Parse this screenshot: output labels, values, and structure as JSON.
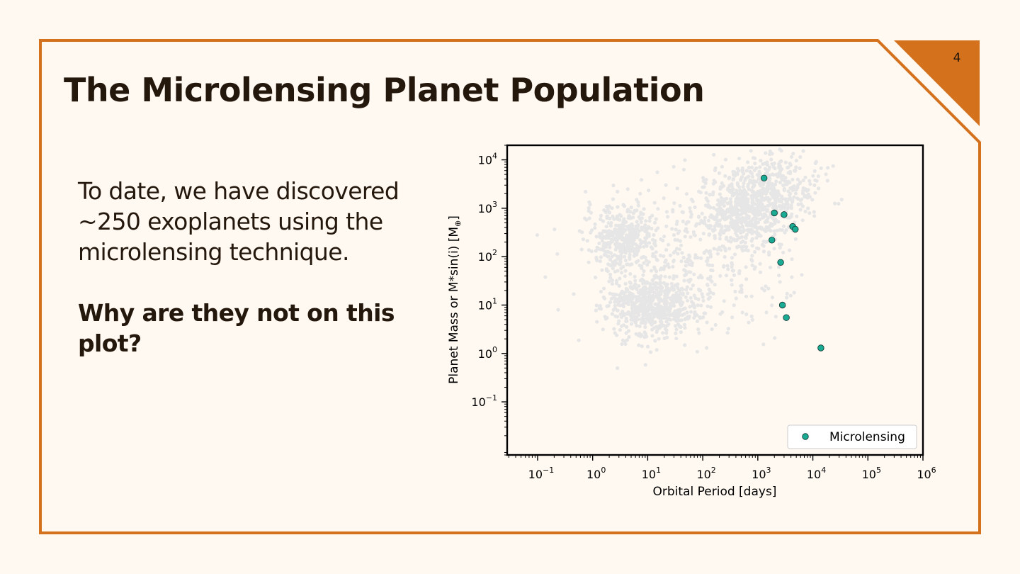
{
  "slide": {
    "number": "4",
    "title": "The Microlensing Planet Population",
    "paragraph": "To date, we have discovered ~250 exoplanets using the microlensing technique.",
    "question": "Why are they not on this plot?",
    "accent_color": "#d4711c"
  },
  "chart_data": {
    "type": "scatter",
    "xscale": "log",
    "yscale": "log",
    "xlabel": "Orbital Period [days]",
    "ylabel": "Planet Mass or M*sin(i) [M",
    "ylabel_sub": "⊕",
    "ylabel_end": "]",
    "xlim": [
      0.028,
      1000000
    ],
    "ylim": [
      0.008,
      20000
    ],
    "x_ticks": [
      {
        "value": 0.1,
        "base": "10",
        "exp": "−1"
      },
      {
        "value": 1,
        "base": "10",
        "exp": "0"
      },
      {
        "value": 10,
        "base": "10",
        "exp": "1"
      },
      {
        "value": 100,
        "base": "10",
        "exp": "2"
      },
      {
        "value": 1000,
        "base": "10",
        "exp": "3"
      },
      {
        "value": 10000,
        "base": "10",
        "exp": "4"
      },
      {
        "value": 100000,
        "base": "10",
        "exp": "5"
      },
      {
        "value": 1000000,
        "base": "10",
        "exp": "6"
      }
    ],
    "y_ticks": [
      {
        "value": 0.1,
        "base": "10",
        "exp": "−1"
      },
      {
        "value": 1,
        "base": "10",
        "exp": "0"
      },
      {
        "value": 10,
        "base": "10",
        "exp": "1"
      },
      {
        "value": 100,
        "base": "10",
        "exp": "2"
      },
      {
        "value": 1000,
        "base": "10",
        "exp": "3"
      },
      {
        "value": 10000,
        "base": "10",
        "exp": "4"
      }
    ],
    "grid": false,
    "legend_position": "lower-right",
    "background_color": "#e6e6e6",
    "series": [
      {
        "name": "Microlensing",
        "color": "#1aab94",
        "points": [
          {
            "x": 1300,
            "y": 4200
          },
          {
            "x": 2000,
            "y": 800
          },
          {
            "x": 3000,
            "y": 740
          },
          {
            "x": 4300,
            "y": 420
          },
          {
            "x": 4800,
            "y": 370
          },
          {
            "x": 1800,
            "y": 220
          },
          {
            "x": 2600,
            "y": 76
          },
          {
            "x": 2800,
            "y": 10
          },
          {
            "x": 3300,
            "y": 5.5
          },
          {
            "x": 14000,
            "y": 1.3
          }
        ]
      }
    ]
  }
}
